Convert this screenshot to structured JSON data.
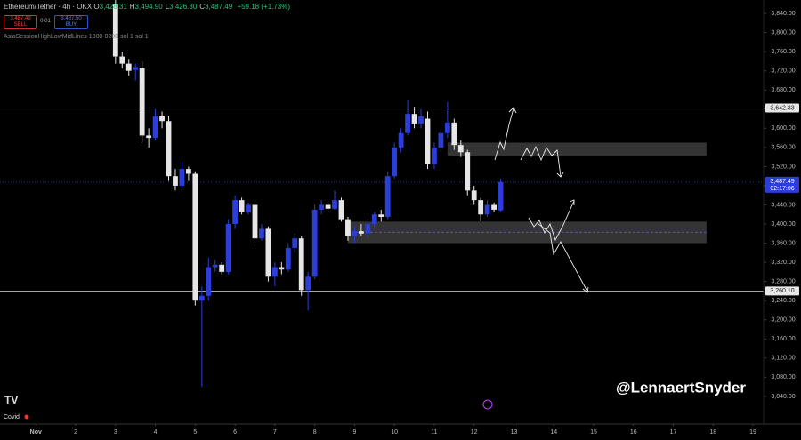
{
  "chart_data": {
    "type": "candlestick",
    "header": {
      "symbol": "Ethereum/Tether · 4h · OKX",
      "ohlc": [
        {
          "k": "O",
          "v": "3,428.31"
        },
        {
          "k": "H",
          "v": "3,494.90"
        },
        {
          "k": "L",
          "v": "3,426.30"
        },
        {
          "k": "C",
          "v": "3,487.49"
        }
      ],
      "change": "+59.18 (+1.73%)",
      "sell_price": "3,487.49",
      "sell": "SELL",
      "spread": "0.01",
      "buy_price": "3,487.50",
      "buy": "BUY",
      "indicator": "AsiaSessionHighLowMidLines 1800-0200 sol 1 sol 1"
    },
    "watermark": "@LennaertSnyder",
    "footer_label": "Covid",
    "up_color": "#2b3fd8",
    "down_color": "#e6e6e6",
    "open": [
      3860,
      3750,
      3735,
      3722,
      3725,
      3585,
      3580,
      3625,
      3615,
      3500,
      3480,
      3515,
      3505,
      3240,
      3250,
      3310,
      3315,
      3300,
      3400,
      3450,
      3425,
      3440,
      3370,
      3390,
      3290,
      3310,
      3305,
      3350,
      3370,
      3262,
      3290,
      3430,
      3440,
      3432,
      3450,
      3410,
      3375,
      3385,
      3380,
      3400,
      3420,
      3415,
      3500,
      3560,
      3590,
      3630,
      3610,
      3620,
      3525,
      3560,
      3590,
      3612,
      3565,
      3550,
      3470,
      3450,
      3420,
      3440,
      3428.31
    ],
    "high": [
      3870,
      3760,
      3745,
      3735,
      3740,
      3600,
      3640,
      3635,
      3625,
      3515,
      3530,
      3520,
      3510,
      3270,
      3330,
      3325,
      3320,
      3410,
      3460,
      3455,
      3445,
      3445,
      3400,
      3395,
      3320,
      3320,
      3360,
      3380,
      3375,
      3300,
      3440,
      3450,
      3445,
      3470,
      3455,
      3415,
      3395,
      3400,
      3410,
      3425,
      3430,
      3510,
      3570,
      3600,
      3660,
      3645,
      3640,
      3635,
      3570,
      3600,
      3655,
      3620,
      3575,
      3555,
      3480,
      3455,
      3450,
      3445,
      3494.9
    ],
    "low": [
      3735,
      3725,
      3710,
      3700,
      3570,
      3560,
      3575,
      3600,
      3490,
      3470,
      3475,
      3490,
      3230,
      3060,
      3240,
      3300,
      3295,
      3295,
      3390,
      3420,
      3420,
      3360,
      3365,
      3280,
      3270,
      3295,
      3300,
      3340,
      3250,
      3220,
      3285,
      3420,
      3425,
      3430,
      3405,
      3365,
      3360,
      3375,
      3370,
      3395,
      3405,
      3410,
      3495,
      3550,
      3585,
      3600,
      3600,
      3515,
      3515,
      3550,
      3580,
      3555,
      3540,
      3460,
      3440,
      3405,
      3415,
      3425,
      3426.3
    ],
    "close": [
      3750,
      3735,
      3720,
      3728,
      3585,
      3580,
      3625,
      3615,
      3500,
      3480,
      3515,
      3505,
      3240,
      3250,
      3310,
      3315,
      3300,
      3400,
      3450,
      3425,
      3440,
      3370,
      3390,
      3290,
      3310,
      3305,
      3350,
      3370,
      3262,
      3290,
      3430,
      3440,
      3432,
      3450,
      3410,
      3375,
      3385,
      3380,
      3400,
      3420,
      3415,
      3500,
      3560,
      3590,
      3630,
      3610,
      3625,
      3525,
      3560,
      3590,
      3612,
      3565,
      3550,
      3470,
      3450,
      3420,
      3440,
      3430,
      3487.49
    ],
    "xlim": [
      -17.4,
      97.6
    ],
    "xticks": [
      {
        "value": -12,
        "label": "Nov"
      },
      {
        "value": -6,
        "label": "2"
      },
      {
        "value": 0,
        "label": "3"
      },
      {
        "value": 6,
        "label": "4"
      },
      {
        "value": 12,
        "label": "5"
      },
      {
        "value": 18,
        "label": "6"
      },
      {
        "value": 24,
        "label": "7"
      },
      {
        "value": 30,
        "label": "8"
      },
      {
        "value": 36,
        "label": "9"
      },
      {
        "value": 42,
        "label": "10"
      },
      {
        "value": 48,
        "label": "11"
      },
      {
        "value": 54,
        "label": "12"
      },
      {
        "value": 60,
        "label": "13"
      },
      {
        "value": 66,
        "label": "14"
      },
      {
        "value": 72,
        "label": "15"
      },
      {
        "value": 78,
        "label": "16"
      },
      {
        "value": 84,
        "label": "17"
      },
      {
        "value": 90,
        "label": "18"
      },
      {
        "value": 96,
        "label": "19"
      }
    ],
    "ylim": [
      2986,
      3868
    ],
    "yticks": [
      {
        "value": 3040,
        "label": "3,040.00"
      },
      {
        "value": 3080,
        "label": "3,080.00"
      },
      {
        "value": 3120,
        "label": "3,120.00"
      },
      {
        "value": 3160,
        "label": "3,160.00"
      },
      {
        "value": 3200,
        "label": "3,200.00"
      },
      {
        "value": 3240,
        "label": "3,240.00"
      },
      {
        "value": 3280,
        "label": "3,280.00"
      },
      {
        "value": 3320,
        "label": "3,320.00"
      },
      {
        "value": 3360,
        "label": "3,360.00"
      },
      {
        "value": 3400,
        "label": "3,400.00"
      },
      {
        "value": 3440,
        "label": "3,440.00"
      },
      {
        "value": 3480,
        "label": "3,480.00"
      },
      {
        "value": 3520,
        "label": "3,520.00"
      },
      {
        "value": 3560,
        "label": "3,560.00"
      },
      {
        "value": 3600,
        "label": "3,600.00"
      },
      {
        "value": 3640,
        "label": "3,640.00"
      },
      {
        "value": 3680,
        "label": "3,680.00"
      },
      {
        "value": 3720,
        "label": "3,720.00"
      },
      {
        "value": 3760,
        "label": "3,760.00"
      },
      {
        "value": 3800,
        "label": "3,800.00"
      },
      {
        "value": 3840,
        "label": "3,840.00"
      }
    ],
    "levels": [
      {
        "value": 3642.33,
        "label": "3,642.33"
      },
      {
        "value": 3260.1,
        "label": "3,260.10"
      }
    ],
    "last_price": {
      "value": 3487.49,
      "label": "3,487.49",
      "countdown": "02:17:06"
    },
    "zones": [
      {
        "top": 3570,
        "bottom": 3542,
        "start": 50,
        "end": 89
      },
      {
        "top": 3405,
        "bottom": 3360,
        "mid": 3383,
        "start": 35,
        "end": 89
      }
    ]
  }
}
